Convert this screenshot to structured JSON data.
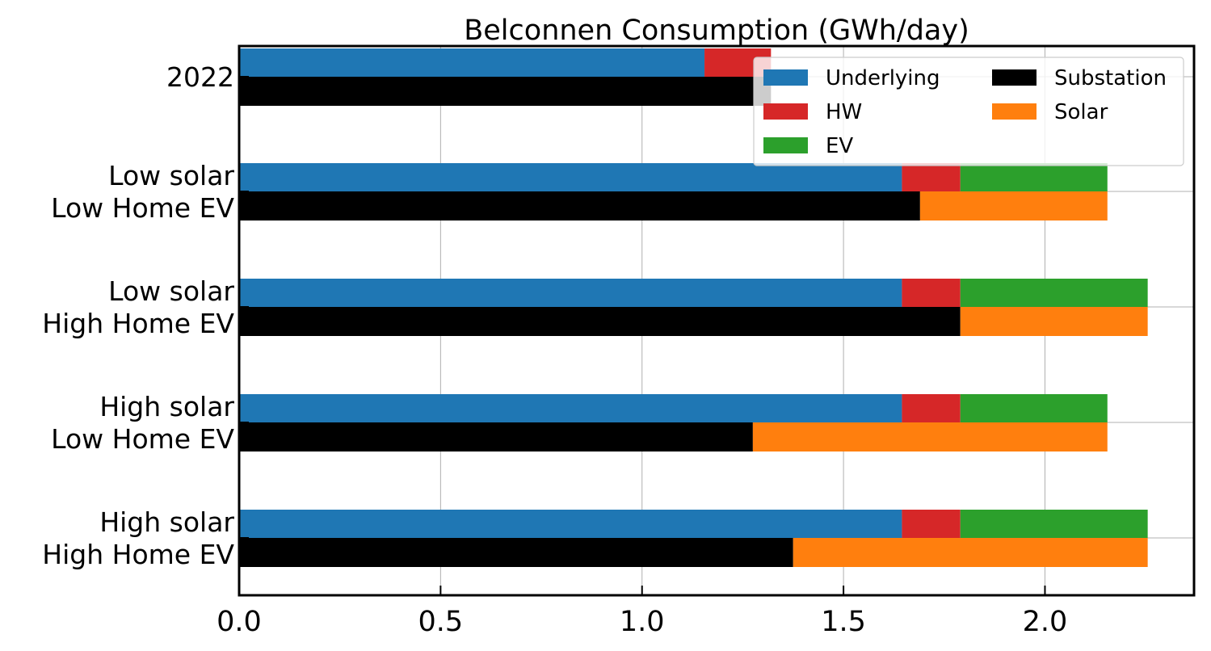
{
  "chart_data": {
    "type": "bar",
    "orientation": "horizontal",
    "stacked": true,
    "title": "Belconnen Consumption (GWh/day)",
    "xlabel": "",
    "ylabel": "",
    "xlim": [
      0,
      2.37
    ],
    "xticks": [
      0.0,
      0.5,
      1.0,
      1.5,
      2.0
    ],
    "xtick_labels": [
      "0.0",
      "0.5",
      "1.0",
      "1.5",
      "2.0"
    ],
    "grid": true,
    "legend_position": "top-right",
    "legend_columns": 2,
    "categories": [
      [
        "2022"
      ],
      [
        "Low solar",
        "Low Home EV"
      ],
      [
        "Low solar",
        "High Home EV"
      ],
      [
        "High solar",
        "Low Home EV"
      ],
      [
        "High solar",
        "High Home EV"
      ]
    ],
    "upper_bar_series": [
      {
        "name": "Underlying",
        "color": "#1f77b4",
        "values": [
          1.155,
          1.645,
          1.645,
          1.645,
          1.645
        ]
      },
      {
        "name": "HW",
        "color": "#d62728",
        "values": [
          0.165,
          0.145,
          0.145,
          0.145,
          0.145
        ]
      },
      {
        "name": "EV",
        "color": "#2ca02c",
        "values": [
          0.0,
          0.365,
          0.465,
          0.365,
          0.465
        ]
      }
    ],
    "lower_bar_series": [
      {
        "name": "Substation",
        "color": "#000000",
        "values": [
          1.32,
          1.69,
          1.79,
          1.275,
          1.375
        ]
      },
      {
        "name": "Solar",
        "color": "#ff7f0e",
        "values": [
          0.0,
          0.465,
          0.465,
          0.88,
          0.88
        ]
      }
    ],
    "legend": [
      {
        "name": "Underlying",
        "color": "#1f77b4"
      },
      {
        "name": "HW",
        "color": "#d62728"
      },
      {
        "name": "EV",
        "color": "#2ca02c"
      },
      {
        "name": "Substation",
        "color": "#000000"
      },
      {
        "name": "Solar",
        "color": "#ff7f0e"
      }
    ]
  }
}
